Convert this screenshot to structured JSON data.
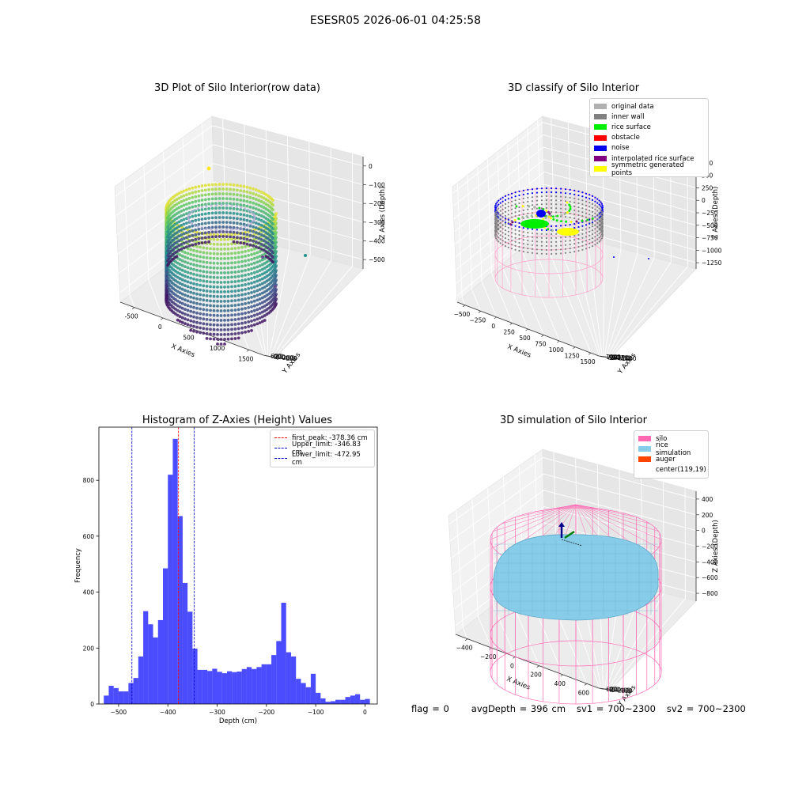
{
  "suptitle": "ESESR05 2026-06-01 04:25:58",
  "plots": {
    "raw": {
      "title": "3D Plot of Silo Interior(row data)",
      "xlabel": "X Axies",
      "ylabel": "Y Axies",
      "zlabel": "Z Axies (Depth)",
      "xticks": [
        "-500",
        "0",
        "500",
        "1000",
        "1500"
      ],
      "yticks": [
        "600",
        "400",
        "200",
        "0",
        "−200",
        "−400",
        "−600"
      ],
      "zticks": [
        "0",
        "−100",
        "−200",
        "−300",
        "−400",
        "−500"
      ]
    },
    "classify": {
      "title": "3D classify of Silo Interior",
      "xlabel": "X Axies",
      "ylabel": "Y Axies",
      "zlabel": "Z Axies (Depth)",
      "xticks": [
        "−500",
        "−250",
        "0",
        "250",
        "500",
        "750",
        "1000",
        "1250",
        "1500"
      ],
      "yticks": [
        "1000",
        "750",
        "500",
        "250",
        "0",
        "−250",
        "−500",
        "−750",
        "−1000"
      ],
      "zticks": [
        "750",
        "500",
        "250",
        "0",
        "−250",
        "−500",
        "−750",
        "−1000",
        "−1250"
      ],
      "legend": [
        {
          "label": "original data",
          "color": "#b0b0b0"
        },
        {
          "label": "inner wall",
          "color": "#808080"
        },
        {
          "label": "rice surface",
          "color": "#00ee00"
        },
        {
          "label": "obstacle",
          "color": "#ff0000"
        },
        {
          "label": "noise",
          "color": "#0000ee"
        },
        {
          "label": "interpolated rice surface",
          "color": "#800080"
        },
        {
          "label": "symmetric generated points",
          "color": "#ffff00"
        }
      ]
    },
    "simulation": {
      "title": "3D simulation of Silo Interior",
      "xlabel": "X Axies",
      "ylabel": "Y Axies",
      "zlabel": "Z Axies (Depth)",
      "xticks": [
        "−400",
        "−200",
        "0",
        "200",
        "400",
        "600"
      ],
      "yticks": [
        "600",
        "400",
        "200",
        "0",
        "−200",
        "−400",
        "−600"
      ],
      "zticks": [
        "400",
        "200",
        "0",
        "−200",
        "−400",
        "−600",
        "−800"
      ],
      "legend": [
        {
          "label": "silo",
          "color": "#ff69b4"
        },
        {
          "label": "rice simulation",
          "color": "#87cdea"
        },
        {
          "label": "auger",
          "color": "#ff4500"
        },
        {
          "label": "center(119,19)",
          "color": "#ffffff"
        }
      ]
    }
  },
  "chart_data": {
    "type": "bar",
    "title": "Histogram of Z-Axies (Height) Values",
    "xlabel": "Depth (cm)",
    "ylabel": "Frequency",
    "xlim": [
      -540,
      25
    ],
    "ylim": [
      0,
      990
    ],
    "xticks": [
      -500,
      -400,
      -300,
      -200,
      -100,
      0
    ],
    "yticks": [
      0,
      200,
      400,
      600,
      800
    ],
    "bin_width": 10,
    "bins_start": [
      -530,
      -520,
      -510,
      -500,
      -490,
      -480,
      -470,
      -460,
      -450,
      -440,
      -430,
      -420,
      -410,
      -400,
      -390,
      -380,
      -370,
      -360,
      -350,
      -340,
      -330,
      -320,
      -310,
      -300,
      -290,
      -280,
      -270,
      -260,
      -250,
      -240,
      -230,
      -220,
      -210,
      -200,
      -190,
      -180,
      -170,
      -160,
      -150,
      -140,
      -130,
      -120,
      -110,
      -100,
      -90,
      -80,
      -70,
      -60,
      -50,
      -40,
      -30,
      -20,
      -10,
      0
    ],
    "values": [
      30,
      65,
      57,
      45,
      45,
      75,
      93,
      170,
      332,
      285,
      238,
      300,
      485,
      820,
      948,
      672,
      433,
      330,
      198,
      122,
      122,
      118,
      126,
      115,
      110,
      117,
      114,
      116,
      125,
      132,
      125,
      132,
      142,
      142,
      175,
      225,
      362,
      185,
      170,
      90,
      75,
      60,
      108,
      40,
      20,
      8,
      10,
      15,
      15,
      25,
      30,
      35,
      15,
      18
    ],
    "color": "#0000ff",
    "vlines": [
      {
        "label": "first_peak: -378.36 cm",
        "x": -378.36,
        "color": "#ff0000"
      },
      {
        "label": "Upper_limit: -346.83 cm",
        "x": -346.83,
        "color": "#0000cc"
      },
      {
        "label": "Lower_limit: -472.95 cm",
        "x": -472.95,
        "color": "#0000cc"
      }
    ]
  },
  "status": {
    "flag": "flag = 0",
    "avg_depth": "avgDepth = 396 cm",
    "sv1": "sv1 = 700~2300",
    "sv2": "sv2 = 700~2300"
  }
}
